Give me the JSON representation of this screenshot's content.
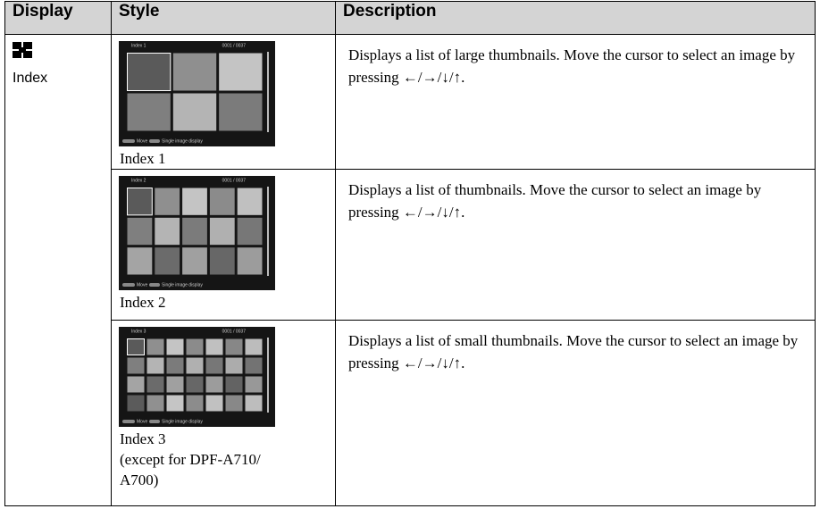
{
  "table": {
    "header": [
      "Display",
      "Style",
      "Description"
    ],
    "display": {
      "label": "Index"
    },
    "rows": [
      {
        "screen": {
          "title": "Index 1",
          "counter": "0001 / 0037",
          "move": "Move",
          "hint": "Single image display"
        },
        "caption": [
          "Index 1"
        ],
        "description": "Displays a list of large thumbnails. Move the cursor to select an image by pressing ←/→/↓/↑."
      },
      {
        "screen": {
          "title": "Index 2",
          "counter": "0001 / 0037",
          "move": "Move",
          "hint": "Single image display"
        },
        "caption": [
          "Index 2"
        ],
        "description": "Displays a list of thumbnails. Move the cursor to select an image by pressing ←/→/↓/↑."
      },
      {
        "screen": {
          "title": "Index 3",
          "counter": "0001 / 0037",
          "move": "Move",
          "hint": "Single image display"
        },
        "caption": [
          "Index 3",
          "(except for DPF-A710/",
          "A700)"
        ],
        "description": "Displays a list of small thumbnails. Move the cursor to select an image by pressing ←/→/↓/↑."
      }
    ]
  }
}
